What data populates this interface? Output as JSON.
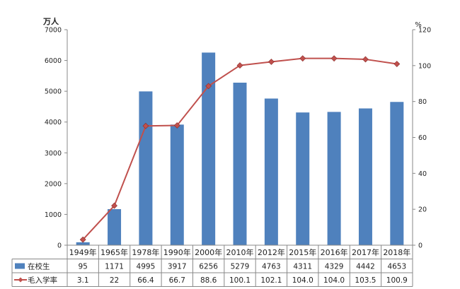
{
  "chart_data": {
    "type": "bar+line",
    "categories": [
      "1949年",
      "1965年",
      "1978年",
      "1990年",
      "2000年",
      "2010年",
      "2012年",
      "2015年",
      "2016年",
      "2017年",
      "2018年"
    ],
    "left_axis": {
      "unit_label": "万人",
      "ticks": [
        "0",
        "1000",
        "2000",
        "3000",
        "4000",
        "5000",
        "6000",
        "7000"
      ],
      "ylim": [
        0,
        7000
      ]
    },
    "right_axis": {
      "unit_label": "%",
      "ticks": [
        "0",
        "20",
        "40",
        "60",
        "80",
        "100",
        "120"
      ],
      "ylim": [
        0,
        120
      ]
    },
    "series": [
      {
        "name": "在校生",
        "kind": "bar",
        "axis": "left",
        "color": "#4F81BD",
        "values": [
          95,
          1171,
          4995,
          3917,
          6256,
          5279,
          4763,
          4311,
          4329,
          4442,
          4653
        ],
        "labels": [
          "95",
          "1171",
          "4995",
          "3917",
          "6256",
          "5279",
          "4763",
          "4311",
          "4329",
          "4442",
          "4653"
        ]
      },
      {
        "name": "毛入学率",
        "kind": "line",
        "axis": "right",
        "color": "#C0504D",
        "values": [
          3.1,
          22,
          66.4,
          66.7,
          88.6,
          100.1,
          102.1,
          104.0,
          104.0,
          103.5,
          100.9
        ],
        "labels": [
          "3.1",
          "22",
          "66.4",
          "66.7",
          "88.6",
          "100.1",
          "102.1",
          "104.0",
          "104.0",
          "103.5",
          "100.9"
        ]
      }
    ],
    "grid": false,
    "legend": "data-table"
  }
}
